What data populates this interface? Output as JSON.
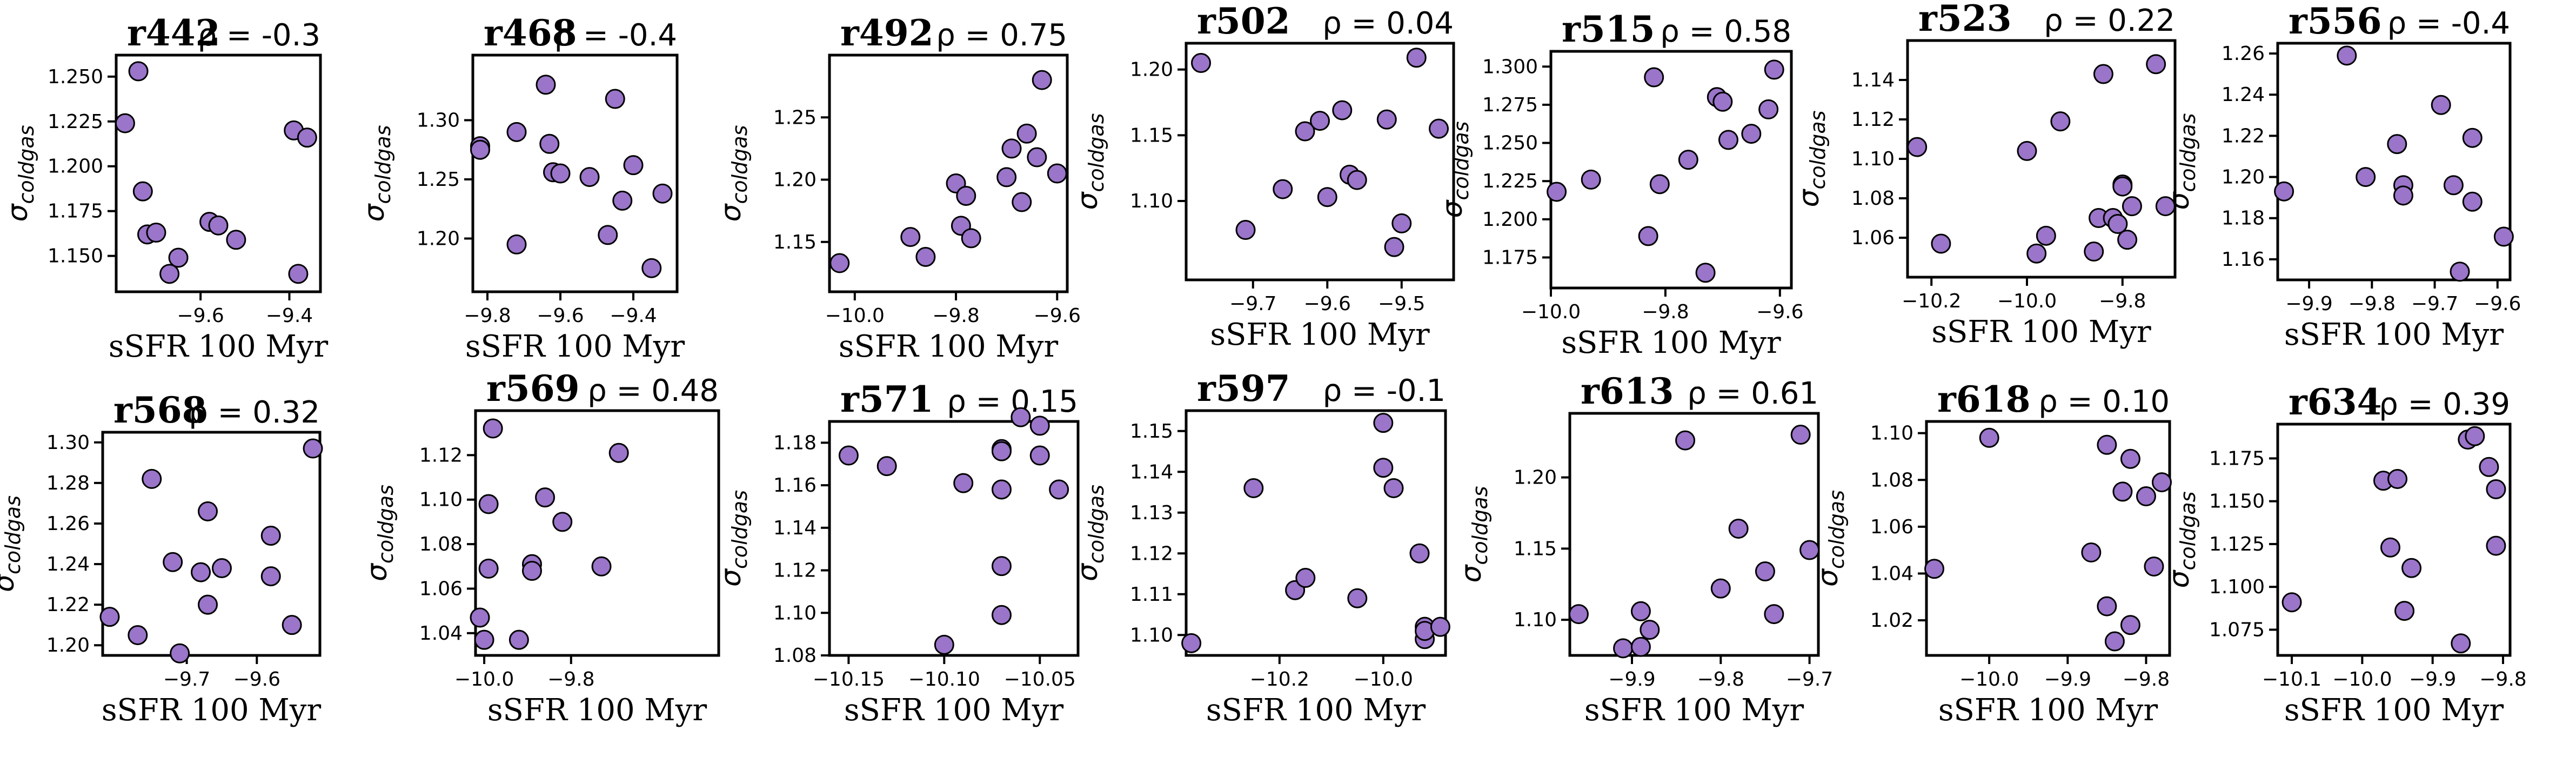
{
  "style": {
    "marker_color": "#9a75c9"
  },
  "chart_data": [
    {
      "type": "scatter",
      "title": "r442",
      "rho": "ρ = -0.3",
      "xlabel": "sSFR 100 Myr",
      "ylabel": "σcoldgas",
      "xlim": [
        -9.79,
        -9.33
      ],
      "ylim": [
        1.13,
        1.262
      ],
      "xticks": [
        -9.6,
        -9.4
      ],
      "xtick_labels": [
        "−9.6",
        "−9.4"
      ],
      "yticks": [
        1.15,
        1.175,
        1.2,
        1.225,
        1.25
      ],
      "ytick_labels": [
        "1.150",
        "1.175",
        "1.200",
        "1.225",
        "1.250"
      ],
      "x": [
        -9.77,
        -9.74,
        -9.73,
        -9.72,
        -9.7,
        -9.67,
        -9.65,
        -9.58,
        -9.56,
        -9.52,
        -9.39,
        -9.38,
        -9.36
      ],
      "y": [
        1.224,
        1.253,
        1.186,
        1.162,
        1.163,
        1.14,
        1.149,
        1.169,
        1.167,
        1.159,
        1.22,
        1.14,
        1.216
      ]
    },
    {
      "type": "scatter",
      "title": "r468",
      "rho": "ρ = -0.4",
      "xlabel": "sSFR 100 Myr",
      "ylabel": "σcoldgas",
      "xlim": [
        -9.84,
        -9.28
      ],
      "ylim": [
        1.155,
        1.355
      ],
      "xticks": [
        -9.8,
        -9.6,
        -9.4
      ],
      "xtick_labels": [
        "−9.8",
        "−9.6",
        "−9.4"
      ],
      "yticks": [
        1.2,
        1.25,
        1.3
      ],
      "ytick_labels": [
        "1.20",
        "1.25",
        "1.30"
      ],
      "x": [
        -9.82,
        -9.82,
        -9.72,
        -9.72,
        -9.64,
        -9.63,
        -9.62,
        -9.6,
        -9.52,
        -9.47,
        -9.45,
        -9.43,
        -9.4,
        -9.35,
        -9.32
      ],
      "y": [
        1.278,
        1.275,
        1.29,
        1.195,
        1.33,
        1.28,
        1.256,
        1.255,
        1.252,
        1.203,
        1.318,
        1.232,
        1.262,
        1.175,
        1.238
      ]
    },
    {
      "type": "scatter",
      "title": "r492",
      "rho": "ρ = 0.75",
      "xlabel": "sSFR 100 Myr",
      "ylabel": "σcoldgas",
      "xlim": [
        -10.05,
        -9.58
      ],
      "ylim": [
        1.11,
        1.3
      ],
      "xticks": [
        -10.0,
        -9.8,
        -9.6
      ],
      "xtick_labels": [
        "−10.0",
        "−9.8",
        "−9.6"
      ],
      "yticks": [
        1.15,
        1.2,
        1.25
      ],
      "ytick_labels": [
        "1.15",
        "1.20",
        "1.25"
      ],
      "x": [
        -10.03,
        -9.89,
        -9.86,
        -9.8,
        -9.79,
        -9.78,
        -9.77,
        -9.7,
        -9.69,
        -9.67,
        -9.66,
        -9.64,
        -9.63,
        -9.6
      ],
      "y": [
        1.133,
        1.154,
        1.138,
        1.197,
        1.163,
        1.187,
        1.153,
        1.202,
        1.225,
        1.182,
        1.237,
        1.218,
        1.28,
        1.205
      ]
    },
    {
      "type": "scatter",
      "title": "r502",
      "rho": "ρ = 0.04",
      "xlabel": "sSFR 100 Myr",
      "ylabel": "σcoldgas",
      "xlim": [
        -9.79,
        -9.43
      ],
      "ylim": [
        1.04,
        1.22
      ],
      "xticks": [
        -9.7,
        -9.6,
        -9.5
      ],
      "xtick_labels": [
        "−9.7",
        "−9.6",
        "−9.5"
      ],
      "yticks": [
        1.1,
        1.15,
        1.2
      ],
      "ytick_labels": [
        "1.10",
        "1.15",
        "1.20"
      ],
      "x": [
        -9.77,
        -9.71,
        -9.66,
        -9.63,
        -9.61,
        -9.6,
        -9.58,
        -9.57,
        -9.56,
        -9.52,
        -9.51,
        -9.5,
        -9.48,
        -9.45
      ],
      "y": [
        1.205,
        1.078,
        1.109,
        1.153,
        1.161,
        1.103,
        1.169,
        1.12,
        1.116,
        1.162,
        1.065,
        1.083,
        1.209,
        1.155
      ]
    },
    {
      "type": "scatter",
      "title": "r515",
      "rho": "ρ = 0.58",
      "xlabel": "sSFR 100 Myr",
      "ylabel": "σcoldgas",
      "xlim": [
        -10.0,
        -9.58
      ],
      "ylim": [
        1.155,
        1.31
      ],
      "xticks": [
        -10.0,
        -9.8,
        -9.6
      ],
      "xtick_labels": [
        "−10.0",
        "−9.8",
        "−9.6"
      ],
      "yticks": [
        1.175,
        1.2,
        1.225,
        1.25,
        1.275,
        1.3
      ],
      "ytick_labels": [
        "1.175",
        "1.200",
        "1.225",
        "1.250",
        "1.275",
        "1.300"
      ],
      "x": [
        -9.99,
        -9.93,
        -9.83,
        -9.82,
        -9.81,
        -9.76,
        -9.73,
        -9.71,
        -9.7,
        -9.69,
        -9.65,
        -9.62,
        -9.61
      ],
      "y": [
        1.218,
        1.226,
        1.189,
        1.293,
        1.223,
        1.239,
        1.165,
        1.28,
        1.277,
        1.252,
        1.256,
        1.272,
        1.298
      ]
    },
    {
      "type": "scatter",
      "title": "r523",
      "rho": "ρ = 0.22",
      "xlabel": "sSFR 100 Myr",
      "ylabel": "σcoldgas",
      "xlim": [
        -10.25,
        -9.69
      ],
      "ylim": [
        1.04,
        1.16
      ],
      "xticks": [
        -10.2,
        -10.0,
        -9.8
      ],
      "xtick_labels": [
        "−10.2",
        "−10.0",
        "−9.8"
      ],
      "yticks": [
        1.06,
        1.08,
        1.1,
        1.12,
        1.14
      ],
      "ytick_labels": [
        "1.06",
        "1.08",
        "1.10",
        "1.12",
        "1.14"
      ],
      "x": [
        -10.23,
        -10.18,
        -10.0,
        -9.98,
        -9.96,
        -9.93,
        -9.86,
        -9.85,
        -9.84,
        -9.82,
        -9.81,
        -9.8,
        -9.8,
        -9.79,
        -9.78,
        -9.73,
        -9.71
      ],
      "y": [
        1.106,
        1.057,
        1.104,
        1.052,
        1.061,
        1.119,
        1.053,
        1.07,
        1.143,
        1.07,
        1.067,
        1.087,
        1.086,
        1.059,
        1.076,
        1.148,
        1.076
      ]
    },
    {
      "type": "scatter",
      "title": "r556",
      "rho": "ρ = -0.4",
      "xlabel": "sSFR 100 Myr",
      "ylabel": "σcoldgas",
      "xlim": [
        -9.95,
        -9.58
      ],
      "ylim": [
        1.15,
        1.265
      ],
      "xticks": [
        -9.9,
        -9.8,
        -9.7,
        -9.6
      ],
      "xtick_labels": [
        "−9.9",
        "−9.8",
        "−9.7",
        "−9.6"
      ],
      "yticks": [
        1.16,
        1.18,
        1.2,
        1.22,
        1.24,
        1.26
      ],
      "ytick_labels": [
        "1.16",
        "1.18",
        "1.20",
        "1.22",
        "1.24",
        "1.26"
      ],
      "x": [
        -9.94,
        -9.84,
        -9.81,
        -9.76,
        -9.75,
        -9.75,
        -9.69,
        -9.67,
        -9.66,
        -9.64,
        -9.64,
        -9.59
      ],
      "y": [
        1.193,
        1.259,
        1.2,
        1.216,
        1.196,
        1.191,
        1.235,
        1.196,
        1.154,
        1.219,
        1.188,
        1.171
      ]
    },
    {
      "type": "scatter",
      "title": "r568",
      "rho": "ρ = 0.32",
      "xlabel": "sSFR 100 Myr",
      "ylabel": "σcoldgas",
      "xlim": [
        -9.82,
        -9.51
      ],
      "ylim": [
        1.195,
        1.305
      ],
      "xticks": [
        -9.7,
        -9.6
      ],
      "xtick_labels": [
        "−9.7",
        "−9.6"
      ],
      "yticks": [
        1.2,
        1.22,
        1.24,
        1.26,
        1.28,
        1.3
      ],
      "ytick_labels": [
        "1.20",
        "1.22",
        "1.24",
        "1.26",
        "1.28",
        "1.30"
      ],
      "x": [
        -9.81,
        -9.77,
        -9.75,
        -9.72,
        -9.71,
        -9.68,
        -9.67,
        -9.67,
        -9.65,
        -9.58,
        -9.58,
        -9.55,
        -9.52
      ],
      "y": [
        1.214,
        1.205,
        1.282,
        1.241,
        1.196,
        1.236,
        1.266,
        1.22,
        1.238,
        1.254,
        1.234,
        1.21,
        1.297
      ]
    },
    {
      "type": "scatter",
      "title": "r569",
      "rho": "ρ = 0.48",
      "xlabel": "sSFR 100 Myr",
      "ylabel": "σcoldgas",
      "xlim": [
        -10.02,
        -9.46
      ],
      "ylim": [
        1.03,
        1.14
      ],
      "xticks": [
        -10.0,
        -9.8
      ],
      "xtick_labels": [
        "−10.0",
        "−9.8"
      ],
      "yticks": [
        1.04,
        1.06,
        1.08,
        1.1,
        1.12
      ],
      "ytick_labels": [
        "1.04",
        "1.06",
        "1.08",
        "1.10",
        "1.12"
      ],
      "x": [
        -10.01,
        -10.0,
        -9.99,
        -9.99,
        -9.98,
        -9.92,
        -9.89,
        -9.89,
        -9.86,
        -9.82,
        -9.73,
        -9.69
      ],
      "y": [
        1.047,
        1.037,
        1.069,
        1.098,
        1.132,
        1.037,
        1.071,
        1.068,
        1.101,
        1.09,
        1.07,
        1.121
      ]
    },
    {
      "type": "scatter",
      "title": "r571",
      "rho": "ρ = 0.15",
      "xlabel": "sSFR 100 Myr",
      "ylabel": "σcoldgas",
      "xlim": [
        -10.16,
        -10.03
      ],
      "ylim": [
        1.08,
        1.19
      ],
      "xticks": [
        -10.15,
        -10.1,
        -10.05
      ],
      "xtick_labels": [
        "−10.15",
        "−10.10",
        "−10.05"
      ],
      "yticks": [
        1.08,
        1.1,
        1.12,
        1.14,
        1.16,
        1.18
      ],
      "ytick_labels": [
        "1.08",
        "1.10",
        "1.12",
        "1.14",
        "1.16",
        "1.18"
      ],
      "x": [
        -10.15,
        -10.13,
        -10.1,
        -10.09,
        -10.07,
        -10.07,
        -10.07,
        -10.07,
        -10.07,
        -10.06,
        -10.05,
        -10.05,
        -10.04
      ],
      "y": [
        1.174,
        1.169,
        1.085,
        1.161,
        1.177,
        1.176,
        1.158,
        1.122,
        1.099,
        1.192,
        1.188,
        1.174,
        1.158
      ]
    },
    {
      "type": "scatter",
      "title": "r597",
      "rho": "ρ = -0.1",
      "xlabel": "sSFR 100 Myr",
      "ylabel": "σcoldgas",
      "xlim": [
        -10.38,
        -9.88
      ],
      "ylim": [
        1.095,
        1.155
      ],
      "xticks": [
        -10.2,
        -10.0
      ],
      "xtick_labels": [
        "−10.2",
        "−10.0"
      ],
      "yticks": [
        1.1,
        1.11,
        1.12,
        1.13,
        1.14,
        1.15
      ],
      "ytick_labels": [
        "1.10",
        "1.11",
        "1.12",
        "1.13",
        "1.14",
        "1.15"
      ],
      "x": [
        -10.37,
        -10.25,
        -10.17,
        -10.15,
        -10.05,
        -10.0,
        -10.0,
        -9.98,
        -9.93,
        -9.92,
        -9.92,
        -9.92,
        -9.89
      ],
      "y": [
        1.098,
        1.136,
        1.111,
        1.114,
        1.109,
        1.152,
        1.141,
        1.136,
        1.12,
        1.102,
        1.099,
        1.101,
        1.102
      ]
    },
    {
      "type": "scatter",
      "title": "r613",
      "rho": "ρ = 0.61",
      "xlabel": "sSFR 100 Myr",
      "ylabel": "σcoldgas",
      "xlim": [
        -9.97,
        -9.69
      ],
      "ylim": [
        1.075,
        1.245
      ],
      "xticks": [
        -9.9,
        -9.8,
        -9.7
      ],
      "xtick_labels": [
        "−9.9",
        "−9.8",
        "−9.7"
      ],
      "yticks": [
        1.1,
        1.15,
        1.2
      ],
      "ytick_labels": [
        "1.10",
        "1.15",
        "1.20"
      ],
      "x": [
        -9.96,
        -9.91,
        -9.89,
        -9.89,
        -9.88,
        -9.84,
        -9.8,
        -9.78,
        -9.75,
        -9.74,
        -9.71,
        -9.7
      ],
      "y": [
        1.104,
        1.08,
        1.106,
        1.081,
        1.093,
        1.226,
        1.122,
        1.164,
        1.134,
        1.104,
        1.23,
        1.149
      ]
    },
    {
      "type": "scatter",
      "title": "r618",
      "rho": "ρ = 0.10",
      "xlabel": "sSFR 100 Myr",
      "ylabel": "σcoldgas",
      "xlim": [
        -10.08,
        -9.77
      ],
      "ylim": [
        1.005,
        1.105
      ],
      "xticks": [
        -10.0,
        -9.9,
        -9.8
      ],
      "xtick_labels": [
        "−10.0",
        "−9.9",
        "−9.8"
      ],
      "yticks": [
        1.02,
        1.04,
        1.06,
        1.08,
        1.1
      ],
      "ytick_labels": [
        "1.02",
        "1.04",
        "1.06",
        "1.08",
        "1.10"
      ],
      "x": [
        -10.07,
        -10.0,
        -9.87,
        -9.85,
        -9.85,
        -9.84,
        -9.83,
        -9.82,
        -9.82,
        -9.8,
        -9.79,
        -9.78
      ],
      "y": [
        1.042,
        1.098,
        1.049,
        1.095,
        1.026,
        1.011,
        1.075,
        1.018,
        1.089,
        1.073,
        1.043,
        1.079
      ]
    },
    {
      "type": "scatter",
      "title": "r634",
      "rho": "ρ = 0.39",
      "xlabel": "sSFR 100 Myr",
      "ylabel": "σcoldgas",
      "xlim": [
        -10.12,
        -9.79
      ],
      "ylim": [
        1.06,
        1.195
      ],
      "xticks": [
        -10.1,
        -10.0,
        -9.9,
        -9.8
      ],
      "xtick_labels": [
        "−10.1",
        "−10.0",
        "−9.9",
        "−9.8"
      ],
      "yticks": [
        1.075,
        1.1,
        1.125,
        1.15,
        1.175
      ],
      "ytick_labels": [
        "1.075",
        "1.100",
        "1.125",
        "1.150",
        "1.175"
      ],
      "x": [
        -10.1,
        -9.97,
        -9.96,
        -9.95,
        -9.94,
        -9.93,
        -9.86,
        -9.85,
        -9.84,
        -9.82,
        -9.81,
        -9.81
      ],
      "y": [
        1.091,
        1.162,
        1.123,
        1.163,
        1.086,
        1.111,
        1.067,
        1.186,
        1.188,
        1.17,
        1.157,
        1.124
      ]
    }
  ]
}
